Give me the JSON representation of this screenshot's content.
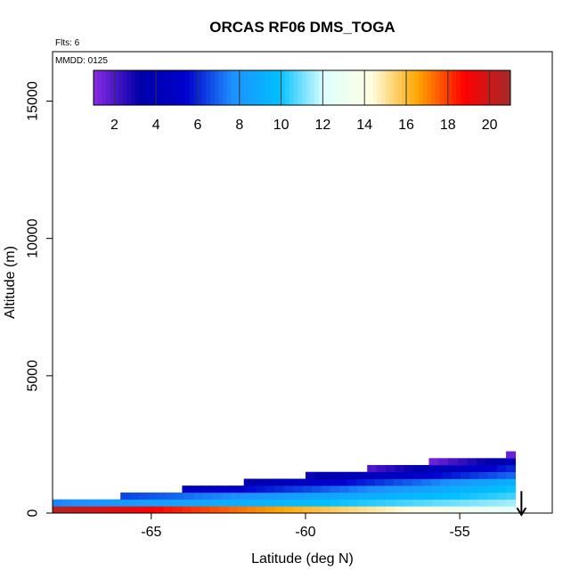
{
  "chart_data": {
    "type": "heatmap",
    "title": "ORCAS RF06 DMS_TOGA",
    "flights_note": "Flts: 6",
    "date_note": "MMDD: 0125",
    "xlabel": "Latitude (deg N)",
    "ylabel": "Altitude (m)",
    "xlim": [
      -68.2,
      -52.0
    ],
    "ylim": [
      0,
      16800
    ],
    "x_ticks": [
      -65,
      -60,
      -55
    ],
    "x_tick_labels": [
      "-65",
      "-60",
      "-55"
    ],
    "y_ticks": [
      0,
      5000,
      10000,
      15000
    ],
    "y_tick_labels": [
      "0",
      "5000",
      "10000",
      "15000"
    ],
    "colorbar": {
      "min": 1.0,
      "max": 21.0,
      "ticks": [
        2,
        4,
        6,
        8,
        10,
        12,
        14,
        16,
        18,
        20
      ],
      "tick_labels": [
        "2",
        "4",
        "6",
        "8",
        "10",
        "12",
        "14",
        "16",
        "18",
        "20"
      ],
      "palette": [
        "#8a2be2",
        "#0000aa",
        "#0000cd",
        "#1e90ff",
        "#00bfff",
        "#e0ffff",
        "#ffffe0",
        "#ffa500",
        "#ff0000",
        "#a52a2a"
      ]
    },
    "data_layers": [
      {
        "alt_min": 0,
        "alt_max": 250,
        "lat_start": -68.2,
        "lat_end": -53.2,
        "value_start": 20.5,
        "value_end": 12.5
      },
      {
        "alt_min": 250,
        "alt_max": 500,
        "lat_start": -68.2,
        "lat_end": -53.2,
        "value_start": 7.5,
        "value_end": 11.5
      },
      {
        "alt_min": 500,
        "alt_max": 750,
        "lat_start": -66.0,
        "lat_end": -53.2,
        "value_start": 6.5,
        "value_end": 10.5
      },
      {
        "alt_min": 750,
        "alt_max": 1000,
        "lat_start": -64.0,
        "lat_end": -53.2,
        "value_start": 4.5,
        "value_end": 10.0
      },
      {
        "alt_min": 1000,
        "alt_max": 1250,
        "lat_start": -62.0,
        "lat_end": -53.2,
        "value_start": 3.5,
        "value_end": 9.0
      },
      {
        "alt_min": 1250,
        "alt_max": 1500,
        "lat_start": -60.0,
        "lat_end": -53.2,
        "value_start": 3.0,
        "value_end": 7.0
      },
      {
        "alt_min": 1500,
        "alt_max": 1750,
        "lat_start": -58.0,
        "lat_end": -53.2,
        "value_start": 2.0,
        "value_end": 6.0
      },
      {
        "alt_min": 1750,
        "alt_max": 2000,
        "lat_start": -56.0,
        "lat_end": -53.2,
        "value_start": 1.5,
        "value_end": 4.0
      },
      {
        "alt_min": 2000,
        "alt_max": 2250,
        "lat_start": -53.5,
        "lat_end": -53.2,
        "value_start": 1.5,
        "value_end": 1.5
      }
    ],
    "direction_arrow": {
      "lat": -53.0,
      "alt_from": 800,
      "alt_to": 0
    }
  }
}
